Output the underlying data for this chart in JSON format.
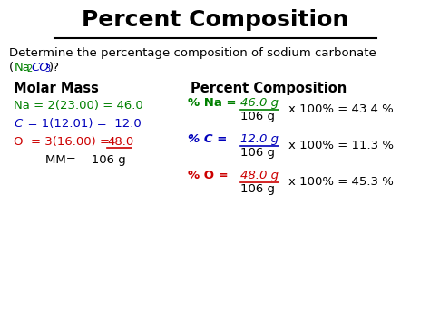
{
  "title": "Percent Composition",
  "background_color": "#ffffff",
  "na_color": "#008000",
  "c_color": "#0000bb",
  "o_color": "#cc0000",
  "black_color": "#000000",
  "subtitle_line1": "Determine the percentage composition of sodium carbonate",
  "header_molar": "Molar Mass",
  "header_percent": "Percent Composition",
  "fig_width": 4.74,
  "fig_height": 3.55,
  "dpi": 100
}
